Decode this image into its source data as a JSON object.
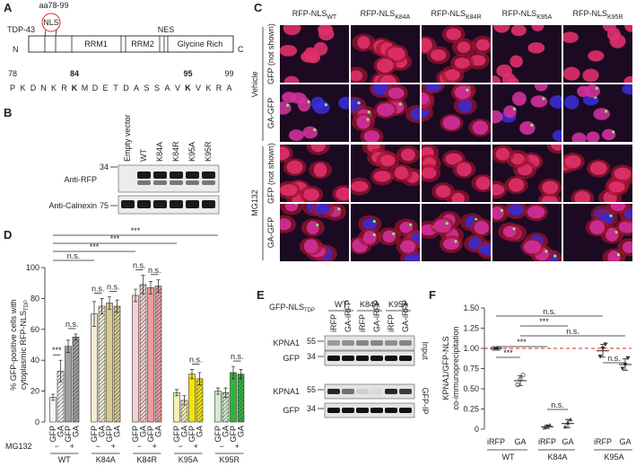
{
  "panel_a": {
    "letter": "A",
    "region": "aa78-99",
    "motif": "NLS",
    "protein": "TDP-43",
    "n_term": "N",
    "c_term": "C",
    "domains": [
      "RRM1",
      "RRM2",
      "NES",
      "Glycine Rich"
    ],
    "positions": [
      {
        "number": 78,
        "color": "#222222"
      },
      {
        "number": 84,
        "color": "#e0281e"
      },
      {
        "number": 95,
        "color": "#e0281e"
      },
      {
        "number": 99,
        "color": "#222222"
      }
    ],
    "sequence": [
      "P",
      "K",
      "D",
      "N",
      "K",
      "R",
      "K",
      "M",
      "D",
      "E",
      "T",
      "D",
      "A",
      "S",
      "S",
      "A",
      "V",
      "K",
      "V",
      "K",
      "R",
      "A"
    ]
  },
  "panel_b": {
    "letter": "B",
    "lanes": [
      "Empty vector",
      "WT",
      "K84A",
      "K84R",
      "K95A",
      "K95R"
    ],
    "blots": [
      {
        "label": "Anti-RFP",
        "marker": "34"
      },
      {
        "label": "Anti-Calnexin",
        "marker": "75"
      }
    ]
  },
  "panel_c": {
    "letter": "C",
    "columns": [
      {
        "base": "RFP-NLS",
        "sub": "WT"
      },
      {
        "base": "RFP-NLS",
        "sub": "K84A"
      },
      {
        "base": "RFP-NLS",
        "sub": "K84R"
      },
      {
        "base": "RFP-NLS",
        "sub": "K95A"
      },
      {
        "base": "RFP-NLS",
        "sub": "K95R"
      }
    ],
    "conditions": [
      "Vehicle",
      "MG132"
    ],
    "channels": [
      "GFP (not shown)",
      "GA-GFP"
    ]
  },
  "chart_data": [
    {
      "type": "bar",
      "letter": "D",
      "y_label": [
        "% GFP-positive cells with",
        "cytoplasmic RFP-NLS"
      ],
      "y_label_sub": "TDP",
      "categories": [
        "WT",
        "K84A",
        "K84R",
        "K95A",
        "K95R"
      ],
      "series": [
        {
          "name": "GFP",
          "hatch": false,
          "colors": [
            "#f4f4f4",
            "#f3ecd2",
            "#f8d0d0",
            "#f4f1b4",
            "#d2ecce"
          ],
          "values": [
            16,
            70,
            82,
            19,
            20
          ],
          "errors": [
            2,
            8,
            4,
            2,
            2
          ]
        },
        {
          "name": "GA",
          "hatch": true,
          "colors": [
            "#f4f4f4",
            "#f3ecd2",
            "#f8d0d0",
            "#f4f1b4",
            "#d2ecce"
          ],
          "values": [
            33,
            75,
            89,
            14,
            19
          ],
          "errors": [
            7,
            5,
            6,
            3,
            3
          ]
        },
        {
          "name": "GFP",
          "hatch": false,
          "colors": [
            "#a0a0a0",
            "#d9ca90",
            "#ee9c9c",
            "#f2e400",
            "#30b43a"
          ],
          "values": [
            49,
            77,
            87,
            31,
            32
          ],
          "errors": [
            4,
            4,
            4,
            3,
            4
          ]
        },
        {
          "name": "GA",
          "hatch": true,
          "colors": [
            "#a0a0a0",
            "#d9ca90",
            "#ee9c9c",
            "#f2e400",
            "#30b43a"
          ],
          "values": [
            55,
            75,
            88,
            28,
            31
          ],
          "errors": [
            2,
            4,
            4,
            4,
            3
          ]
        }
      ],
      "treatment_label": "MG132",
      "treatment_signs": [
        "−",
        "+"
      ],
      "treatment_color": "#e0281e",
      "ylim": [
        0,
        100
      ],
      "yticks": [
        0,
        20,
        40,
        60,
        80,
        100
      ],
      "comparisons": [
        "***",
        "***",
        "***",
        "n.s.",
        "n.s.",
        "***",
        "n.s.",
        "n.s.",
        "n.s.",
        "n.s.",
        "n.s.",
        "n.s."
      ]
    },
    {
      "type": "dot",
      "letter": "F",
      "y_label": [
        "KPNA1/GFP-NLS",
        "co-immunoprecipitation"
      ],
      "categories": [
        "iRFP",
        "GA",
        "iRFP",
        "GA",
        "iRFP",
        "GA"
      ],
      "groups": [
        "WT",
        "K84A",
        "K95A"
      ],
      "values": [
        1.0,
        0.6,
        0.03,
        0.07,
        0.97,
        0.8
      ],
      "errors": [
        0.01,
        0.06,
        0.02,
        0.05,
        0.08,
        0.07
      ],
      "points": [
        [
          1.0,
          1.0,
          1.0
        ],
        [
          0.55,
          0.62,
          0.67
        ],
        [
          0.02,
          0.04,
          0.05
        ],
        [
          0.03,
          0.08,
          0.12
        ],
        [
          0.9,
          1.0,
          1.05
        ],
        [
          0.75,
          0.8,
          0.88
        ]
      ],
      "ylim": [
        0,
        1.5
      ],
      "yticks": [
        0,
        {
          "value": 0.25,
          "label": "0.25"
        },
        {
          "value": 0.5,
          "label": "0.50"
        },
        {
          "value": 0.75,
          "label": "0.75"
        },
        {
          "value": 1.0,
          "label": "1.00"
        },
        {
          "value": 1.25,
          "label": "1.25"
        },
        {
          "value": 1.5,
          "label": "1.50"
        }
      ],
      "reference_line": 1.0,
      "reference_color": "#e0281e",
      "comparisons": [
        "n.s.",
        "***",
        "n.s.",
        "***",
        "***",
        "n.s.",
        "n.s."
      ]
    }
  ],
  "panel_e": {
    "letter": "E",
    "construct": "GFP-NLS",
    "construct_sub": "TDP",
    "groups": [
      "WT",
      "K84A",
      "K95A"
    ],
    "lanes": [
      "iRFP",
      "GA-iRFP",
      "iRFP",
      "GA-iRFP",
      "iRFP",
      "GA-iRFP"
    ],
    "sections": [
      {
        "name": "Input",
        "blots": [
          {
            "label": "KPNA1",
            "marker": "55"
          },
          {
            "label": "GFP",
            "marker": "34"
          }
        ]
      },
      {
        "name": "GFP-IP",
        "blots": [
          {
            "label": "KPNA1",
            "marker": "55"
          },
          {
            "label": "GFP",
            "marker": "34"
          }
        ]
      }
    ]
  }
}
